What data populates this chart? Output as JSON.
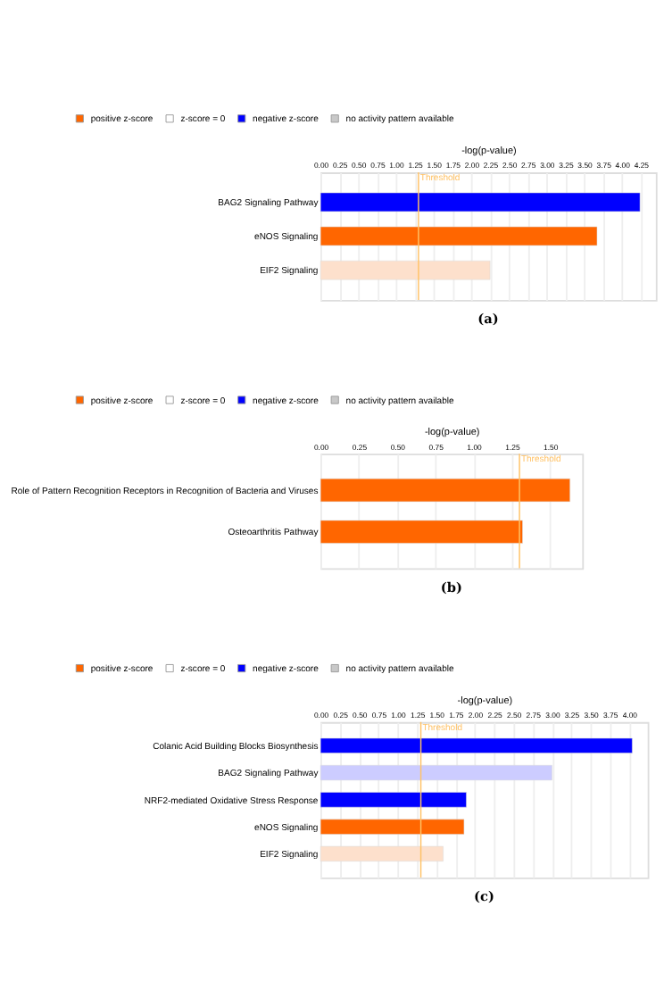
{
  "chart_data": [
    {
      "type": "bar",
      "orientation": "horizontal",
      "title": "(a)",
      "xlabel": "-log(p-value)",
      "grid": "x",
      "legend": "top left",
      "categories": [
        "BAG2 Signaling Pathway",
        "eNOS Signaling",
        "EIF2 Signaling"
      ],
      "series": [
        {
          "name": "positive z-score",
          "color": "#ff6600",
          "values": [
            null,
            3.67,
            null
          ]
        },
        {
          "name": "z-score = 0",
          "color": "#ffffff",
          "values": [
            null,
            null,
            null
          ]
        },
        {
          "name": "negative z-score",
          "color": "#0000ff",
          "values": [
            4.24,
            null,
            null
          ]
        },
        {
          "name": "no activity pattern available",
          "color": "#c8c8c8",
          "values": [
            null,
            null,
            null
          ]
        },
        {
          "color": "#fde0cc",
          "values": [
            null,
            null,
            2.25
          ]
        }
      ],
      "xlim": [
        0,
        4.45
      ],
      "xticks": [
        {
          "value": 0,
          "label": "0.00"
        },
        {
          "value": 0.25,
          "label": "0.25"
        },
        {
          "value": 0.5,
          "label": "0.50"
        },
        {
          "value": 0.75,
          "label": "0.75"
        },
        {
          "value": 1,
          "label": "1.00"
        },
        {
          "value": 1.25,
          "label": "1.25"
        },
        {
          "value": 1.5,
          "label": "1.50"
        },
        {
          "value": 1.75,
          "label": "1.75"
        },
        {
          "value": 2,
          "label": "2.00"
        },
        {
          "value": 2.25,
          "label": "2.25"
        },
        {
          "value": 2.5,
          "label": "2.50"
        },
        {
          "value": 2.75,
          "label": "2.75"
        },
        {
          "value": 3,
          "label": "3.00"
        },
        {
          "value": 3.25,
          "label": "3.25"
        },
        {
          "value": 3.5,
          "label": "3.50"
        },
        {
          "value": 3.75,
          "label": "3.75"
        },
        {
          "value": 4,
          "label": "4.00"
        },
        {
          "value": 4.25,
          "label": "4.25"
        }
      ],
      "ref_lines": [
        {
          "axis": "x",
          "value": 1.3,
          "label": "Threshold",
          "color": "#ffc266"
        }
      ]
    },
    {
      "type": "bar",
      "orientation": "horizontal",
      "title": "(b)",
      "xlabel": "-log(p-value)",
      "grid": "x",
      "legend": "top left",
      "categories": [
        "Role of Pattern Recognition Receptors in Recognition of Bacteria and Viruses",
        "Osteoarthritis Pathway"
      ],
      "series": [
        {
          "name": "positive z-score",
          "color": "#ff6600",
          "values": [
            1.63,
            1.32
          ]
        },
        {
          "name": "z-score = 0",
          "color": "#ffffff",
          "values": [
            null,
            null
          ]
        },
        {
          "name": "negative z-score",
          "color": "#0000ff",
          "values": [
            null,
            null
          ]
        },
        {
          "name": "no activity pattern available",
          "color": "#c8c8c8",
          "values": [
            null,
            null
          ]
        }
      ],
      "xlim": [
        0,
        1.71
      ],
      "xticks": [
        {
          "value": 0,
          "label": "0.00"
        },
        {
          "value": 0.25,
          "label": "0.25"
        },
        {
          "value": 0.5,
          "label": "0.50"
        },
        {
          "value": 0.75,
          "label": "0.75"
        },
        {
          "value": 1,
          "label": "1.00"
        },
        {
          "value": 1.25,
          "label": "1.25"
        },
        {
          "value": 1.5,
          "label": "1.50"
        }
      ],
      "ref_lines": [
        {
          "axis": "x",
          "value": 1.3,
          "label": "Threshold",
          "color": "#ffc266"
        }
      ]
    },
    {
      "type": "bar",
      "orientation": "horizontal",
      "title": "(c)",
      "xlabel": "-log(p-value)",
      "grid": "x",
      "legend": "top left",
      "categories": [
        "Colanic Acid Building Blocks Biosynthesis",
        "BAG2 Signaling Pathway",
        "NRF2-mediated Oxidative Stress Response",
        "eNOS Signaling",
        "EIF2 Signaling"
      ],
      "series": [
        {
          "name": "positive z-score",
          "color": "#ff6600",
          "values": [
            null,
            null,
            null,
            1.86,
            null
          ]
        },
        {
          "name": "z-score = 0",
          "color": "#ffffff",
          "values": [
            null,
            null,
            null,
            null,
            null
          ]
        },
        {
          "name": "negative z-score",
          "color": "#0000ff",
          "values": [
            4.04,
            null,
            1.89,
            null,
            null
          ]
        },
        {
          "name": "no activity pattern available",
          "color": "#c8c8c8",
          "values": [
            null,
            null,
            null,
            null,
            null
          ]
        },
        {
          "color": "#ccccff",
          "values": [
            null,
            3.0,
            null,
            null,
            null
          ]
        },
        {
          "color": "#fde0cc",
          "values": [
            null,
            null,
            null,
            null,
            1.59
          ]
        }
      ],
      "xlim": [
        0,
        4.24
      ],
      "xticks": [
        {
          "value": 0,
          "label": "0.00"
        },
        {
          "value": 0.25,
          "label": "0.25"
        },
        {
          "value": 0.5,
          "label": "0.50"
        },
        {
          "value": 0.75,
          "label": "0.75"
        },
        {
          "value": 1,
          "label": "1.00"
        },
        {
          "value": 1.25,
          "label": "1.25"
        },
        {
          "value": 1.5,
          "label": "1.50"
        },
        {
          "value": 1.75,
          "label": "1.75"
        },
        {
          "value": 2,
          "label": "2.00"
        },
        {
          "value": 2.25,
          "label": "2.25"
        },
        {
          "value": 2.5,
          "label": "2.50"
        },
        {
          "value": 2.75,
          "label": "2.75"
        },
        {
          "value": 3,
          "label": "3.00"
        },
        {
          "value": 3.25,
          "label": "3.25"
        },
        {
          "value": 3.5,
          "label": "3.50"
        },
        {
          "value": 3.75,
          "label": "3.75"
        },
        {
          "value": 4,
          "label": "4.00"
        }
      ],
      "ref_lines": [
        {
          "axis": "x",
          "value": 1.3,
          "label": "Threshold",
          "color": "#ffc266"
        }
      ]
    }
  ]
}
